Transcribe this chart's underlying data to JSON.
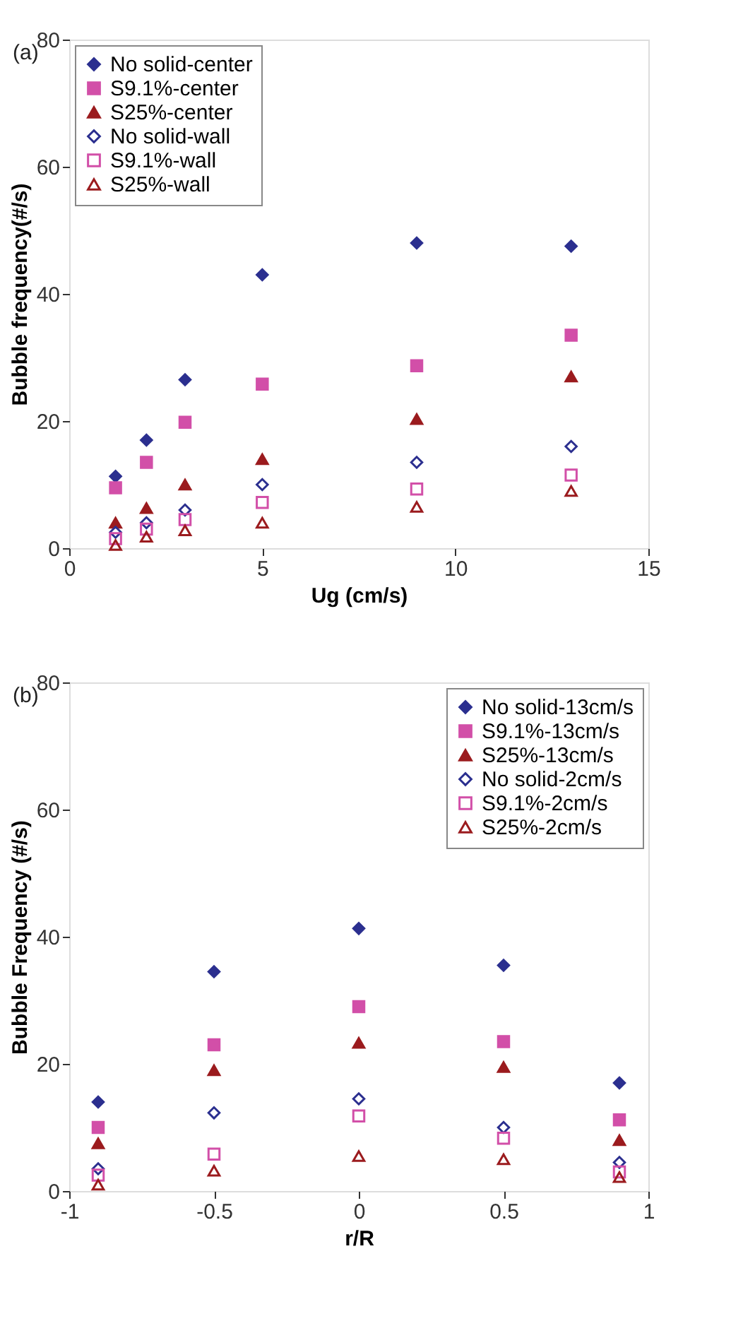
{
  "chart_data": [
    {
      "type": "scatter",
      "annotations": [
        "(a)"
      ],
      "xlabel": "Ug (cm/s)",
      "ylabel": "Bubble frequency(#/s)",
      "xlim": [
        0,
        15
      ],
      "xticks": [
        0,
        5,
        10,
        15
      ],
      "ylim": [
        0,
        80
      ],
      "yticks": [
        0,
        20,
        40,
        60,
        80
      ],
      "grid": false,
      "legend": "top left",
      "x": [
        1.2,
        2,
        3,
        5,
        9,
        13
      ],
      "series": [
        {
          "name": "No solid-center",
          "color": "#2b2f8f",
          "marker": "diamond",
          "values": [
            11.3,
            17,
            26.5,
            43,
            48,
            47.5
          ]
        },
        {
          "name": "S9.1%-center",
          "color": "#d24fa8",
          "marker": "square",
          "values": [
            9.5,
            13.5,
            19.8,
            25.8,
            28.7,
            33.5
          ]
        },
        {
          "name": "S25%-center",
          "color": "#9b1b1e",
          "marker": "triangle",
          "values": [
            4,
            6.3,
            10,
            14,
            20.3,
            27
          ]
        },
        {
          "name": "No solid-wall",
          "color": "#2b2f8f",
          "marker": "diamond-open",
          "values": [
            2.5,
            4,
            6,
            10,
            13.5,
            16
          ]
        },
        {
          "name": "S9.1%-wall",
          "color": "#d24fa8",
          "marker": "square-open",
          "values": [
            1.5,
            3,
            4.5,
            7.2,
            9.3,
            11.5
          ]
        },
        {
          "name": "S25%-wall",
          "color": "#9b1b1e",
          "marker": "triangle-open",
          "values": [
            0.5,
            1.8,
            2.8,
            4,
            6.5,
            9
          ]
        }
      ]
    },
    {
      "type": "scatter",
      "annotations": [
        "(b)"
      ],
      "xlabel": "r/R",
      "ylabel": "Bubble Frequency (#/s)",
      "xlim": [
        -1,
        1
      ],
      "xticks": [
        {
          "value": -1,
          "label": "-1"
        },
        -0.5,
        0,
        0.5,
        1
      ],
      "ylim": [
        0,
        80
      ],
      "yticks": [
        0,
        20,
        40,
        60,
        80
      ],
      "grid": false,
      "legend": "top right",
      "x": [
        -0.9,
        -0.5,
        0,
        0.5,
        0.9
      ],
      "series": [
        {
          "name": "No solid-13cm/s",
          "color": "#2b2f8f",
          "marker": "diamond",
          "values": [
            14,
            34.5,
            41.3,
            35.5,
            17
          ]
        },
        {
          "name": "S9.1%-13cm/s",
          "color": "#d24fa8",
          "marker": "square",
          "values": [
            10,
            23,
            29,
            23.5,
            11.2
          ]
        },
        {
          "name": "S25%-13cm/s",
          "color": "#9b1b1e",
          "marker": "triangle",
          "values": [
            7.5,
            19,
            23.3,
            19.5,
            8
          ]
        },
        {
          "name": "No solid-2cm/s",
          "color": "#2b2f8f",
          "marker": "diamond-open",
          "values": [
            3.5,
            12.3,
            14.5,
            10,
            4.5
          ]
        },
        {
          "name": "S9.1%-2cm/s",
          "color": "#d24fa8",
          "marker": "square-open",
          "values": [
            2.5,
            5.8,
            11.8,
            8.3,
            3
          ]
        },
        {
          "name": "S25%-2cm/s",
          "color": "#9b1b1e",
          "marker": "triangle-open",
          "values": [
            1,
            3.2,
            5.5,
            5,
            2.2
          ]
        }
      ]
    }
  ]
}
